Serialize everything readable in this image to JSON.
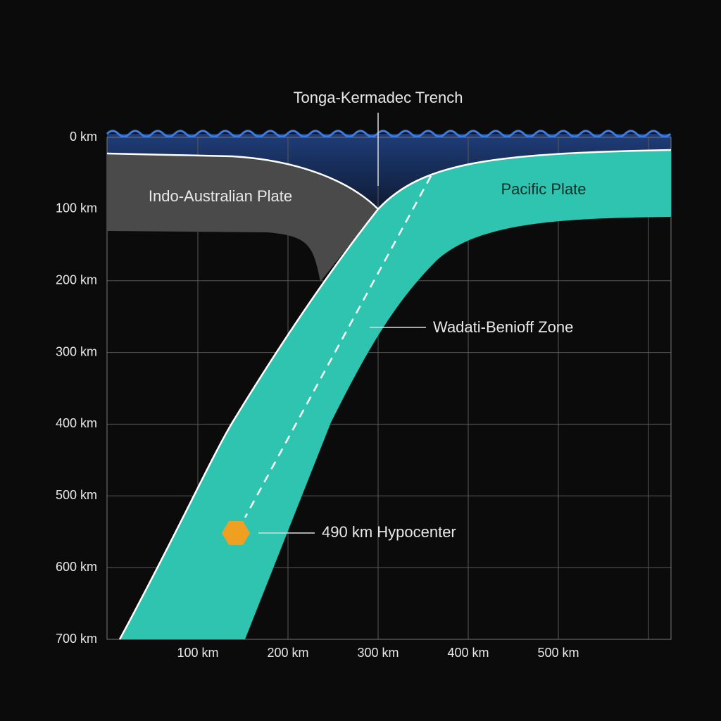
{
  "title": "Tonga-Kermadec Trench",
  "y_axis": {
    "labels": [
      "0 km",
      "100 km",
      "200 km",
      "300 km",
      "400 km",
      "500 km",
      "600 km",
      "700 km"
    ]
  },
  "x_axis": {
    "labels": [
      "100 km",
      "200 km",
      "300 km",
      "400 km",
      "500 km"
    ]
  },
  "plates": {
    "left": "Indo-Australian Plate",
    "right": "Pacific Plate"
  },
  "annotations": {
    "zone": "Wadati-Benioff Zone",
    "hypocenter": "490 km Hypocenter"
  }
}
